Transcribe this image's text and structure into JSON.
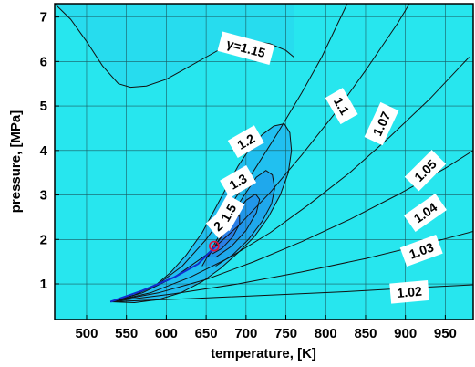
{
  "chart_data": {
    "type": "contour",
    "title": "",
    "xlabel": "temperature, [K]",
    "ylabel": "pressure, [MPa]",
    "xlim": [
      460,
      985
    ],
    "ylim": [
      0.2,
      7.3
    ],
    "xticks": [
      500,
      550,
      600,
      650,
      700,
      750,
      800,
      850,
      900,
      950
    ],
    "yticks": [
      1,
      2,
      3,
      4,
      5,
      6,
      7
    ],
    "grid": true,
    "critical_point": {
      "x": 660,
      "y": 1.85
    },
    "contours": [
      {
        "label": "γ=1.15",
        "closed": false,
        "points": [
          [
            460,
            7.3
          ],
          [
            480,
            6.95
          ],
          [
            500,
            6.45
          ],
          [
            520,
            5.9
          ],
          [
            540,
            5.5
          ],
          [
            555,
            5.42
          ],
          [
            575,
            5.45
          ],
          [
            600,
            5.6
          ],
          [
            625,
            5.85
          ],
          [
            650,
            6.1
          ],
          [
            670,
            6.3
          ],
          [
            690,
            6.4
          ],
          [
            710,
            6.45
          ],
          [
            730,
            6.4
          ],
          [
            750,
            6.25
          ],
          [
            760,
            6.1
          ]
        ],
        "label_pos": [
          700,
          6.3
        ]
      },
      {
        "label": "1.2",
        "closed": true,
        "points": [
          [
            530,
            0.6
          ],
          [
            560,
            0.75
          ],
          [
            585,
            0.95
          ],
          [
            605,
            1.25
          ],
          [
            625,
            1.65
          ],
          [
            645,
            2.15
          ],
          [
            660,
            2.65
          ],
          [
            675,
            3.15
          ],
          [
            690,
            3.65
          ],
          [
            705,
            4.05
          ],
          [
            720,
            4.35
          ],
          [
            735,
            4.55
          ],
          [
            748,
            4.6
          ],
          [
            755,
            4.4
          ],
          [
            757,
            4.0
          ],
          [
            753,
            3.5
          ],
          [
            743,
            3.0
          ],
          [
            728,
            2.5
          ],
          [
            710,
            2.05
          ],
          [
            690,
            1.7
          ],
          [
            668,
            1.35
          ],
          [
            645,
            1.05
          ],
          [
            618,
            0.8
          ],
          [
            590,
            0.65
          ],
          [
            560,
            0.58
          ],
          [
            530,
            0.6
          ]
        ],
        "label_pos": [
          700,
          4.2
        ]
      },
      {
        "label": "1.3",
        "closed": false,
        "points": [
          [
            645,
            1.4
          ],
          [
            662,
            1.95
          ],
          [
            680,
            2.5
          ],
          [
            698,
            3.0
          ],
          [
            713,
            3.4
          ],
          [
            725,
            3.55
          ],
          [
            733,
            3.45
          ],
          [
            736,
            3.15
          ],
          [
            732,
            2.8
          ],
          [
            720,
            2.4
          ],
          [
            703,
            2.0
          ],
          [
            683,
            1.65
          ],
          [
            662,
            1.4
          ]
        ],
        "label_pos": [
          690,
          3.3
        ]
      },
      {
        "label": "1.5",
        "closed": false,
        "points": [
          [
            652,
            1.6
          ],
          [
            668,
            2.05
          ],
          [
            684,
            2.5
          ],
          [
            700,
            2.88
          ],
          [
            712,
            3.02
          ],
          [
            717,
            2.9
          ],
          [
            713,
            2.6
          ],
          [
            700,
            2.2
          ],
          [
            682,
            1.85
          ],
          [
            662,
            1.6
          ]
        ],
        "label_pos": [
          678,
          2.6
        ]
      },
      {
        "label": "2",
        "closed": false,
        "points": [
          [
            655,
            1.7
          ],
          [
            665,
            1.95
          ],
          [
            675,
            2.2
          ],
          [
            685,
            2.45
          ],
          [
            692,
            2.55
          ],
          [
            692,
            2.35
          ],
          [
            683,
            2.05
          ],
          [
            670,
            1.8
          ],
          [
            658,
            1.68
          ]
        ],
        "label_pos": [
          665,
          2.3
        ]
      },
      {
        "label": "1.1",
        "closed": false,
        "points": [
          [
            530,
            0.6
          ],
          [
            560,
            0.75
          ],
          [
            590,
            1.0
          ],
          [
            620,
            1.4
          ],
          [
            650,
            2.0
          ],
          [
            680,
            2.75
          ],
          [
            710,
            3.55
          ],
          [
            740,
            4.4
          ],
          [
            770,
            5.3
          ],
          [
            795,
            6.1
          ],
          [
            815,
            6.85
          ],
          [
            827,
            7.3
          ]
        ],
        "label_pos": [
          820,
          5.0
        ]
      },
      {
        "label": "1.07",
        "closed": false,
        "points": [
          [
            530,
            0.6
          ],
          [
            570,
            0.8
          ],
          [
            610,
            1.15
          ],
          [
            650,
            1.65
          ],
          [
            690,
            2.3
          ],
          [
            730,
            3.05
          ],
          [
            770,
            3.9
          ],
          [
            810,
            4.8
          ],
          [
            850,
            5.8
          ],
          [
            890,
            6.85
          ],
          [
            905,
            7.3
          ]
        ],
        "label_pos": [
          870,
          4.6
        ]
      },
      {
        "label": "1.05",
        "closed": false,
        "points": [
          [
            530,
            0.6
          ],
          [
            580,
            0.8
          ],
          [
            630,
            1.15
          ],
          [
            680,
            1.6
          ],
          [
            730,
            2.15
          ],
          [
            780,
            2.8
          ],
          [
            830,
            3.5
          ],
          [
            880,
            4.3
          ],
          [
            930,
            5.15
          ],
          [
            980,
            6.1
          ]
        ],
        "label_pos": [
          925,
          3.55
        ]
      },
      {
        "label": "1.04",
        "closed": false,
        "points": [
          [
            530,
            0.6
          ],
          [
            590,
            0.8
          ],
          [
            650,
            1.1
          ],
          [
            710,
            1.5
          ],
          [
            770,
            1.95
          ],
          [
            830,
            2.45
          ],
          [
            890,
            3.0
          ],
          [
            950,
            3.6
          ],
          [
            985,
            4.0
          ]
        ],
        "label_pos": [
          925,
          2.6
        ]
      },
      {
        "label": "1.03",
        "closed": false,
        "points": [
          [
            530,
            0.6
          ],
          [
            610,
            0.78
          ],
          [
            690,
            1.0
          ],
          [
            770,
            1.27
          ],
          [
            850,
            1.57
          ],
          [
            930,
            1.92
          ],
          [
            985,
            2.18
          ]
        ],
        "label_pos": [
          920,
          1.75
        ]
      },
      {
        "label": "1.02",
        "closed": false,
        "points": [
          [
            530,
            0.6
          ],
          [
            630,
            0.67
          ],
          [
            730,
            0.75
          ],
          [
            830,
            0.83
          ],
          [
            930,
            0.93
          ],
          [
            985,
            0.98
          ]
        ],
        "label_pos": [
          905,
          0.82
        ]
      }
    ]
  }
}
